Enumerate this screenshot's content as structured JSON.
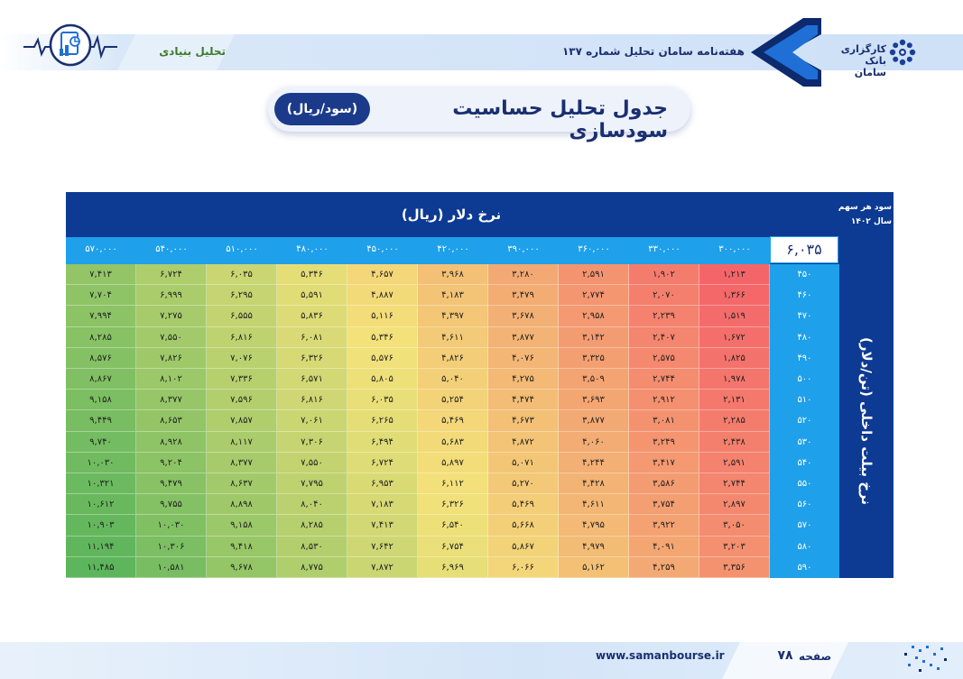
{
  "header": {
    "brand_name": "کارگزاری بانک سامان",
    "issue_title": "هفته‌نامه سامان تحلیل شماره ۱۳۷",
    "section_tag": "تحلیل بنیادی"
  },
  "title": {
    "main": "جدول تحلیل حساسیت سودسازی",
    "unit": "(سود/ریال)"
  },
  "table": {
    "corner_label": [
      "سود هر سهم",
      "سال ۱۴۰۲"
    ],
    "base_eps": "۶,۰۳۵",
    "column_axis_label": "نرخ دلار (ریال)",
    "row_axis_label": "نرخ بیلت داخلی (تن/دلار)",
    "column_headers": [
      "۳۰۰,۰۰۰",
      "۳۳۰,۰۰۰",
      "۳۶۰,۰۰۰",
      "۳۹۰,۰۰۰",
      "۴۲۰,۰۰۰",
      "۴۵۰,۰۰۰",
      "۴۸۰,۰۰۰",
      "۵۱۰,۰۰۰",
      "۵۴۰,۰۰۰",
      "۵۷۰,۰۰۰"
    ],
    "row_headers": [
      "۴۵۰",
      "۴۶۰",
      "۴۷۰",
      "۴۸۰",
      "۴۹۰",
      "۵۰۰",
      "۵۱۰",
      "۵۲۰",
      "۵۳۰",
      "۵۴۰",
      "۵۵۰",
      "۵۶۰",
      "۵۷۰",
      "۵۸۰",
      "۵۹۰"
    ],
    "rows": [
      [
        "۱,۲۱۳",
        "۱,۹۰۲",
        "۲,۵۹۱",
        "۳,۲۸۰",
        "۳,۹۶۸",
        "۴,۶۵۷",
        "۵,۳۴۶",
        "۶,۰۳۵",
        "۶,۷۲۴",
        "۷,۴۱۳"
      ],
      [
        "۱,۳۶۶",
        "۲,۰۷۰",
        "۲,۷۷۴",
        "۳,۴۷۹",
        "۴,۱۸۳",
        "۴,۸۸۷",
        "۵,۵۹۱",
        "۶,۲۹۵",
        "۶,۹۹۹",
        "۷,۷۰۴"
      ],
      [
        "۱,۵۱۹",
        "۲,۲۳۹",
        "۲,۹۵۸",
        "۳,۶۷۸",
        "۴,۳۹۷",
        "۵,۱۱۶",
        "۵,۸۳۶",
        "۶,۵۵۵",
        "۷,۲۷۵",
        "۷,۹۹۴"
      ],
      [
        "۱,۶۷۲",
        "۲,۴۰۷",
        "۳,۱۴۲",
        "۳,۸۷۷",
        "۴,۶۱۱",
        "۵,۳۴۶",
        "۶,۰۸۱",
        "۶,۸۱۶",
        "۷,۵۵۰",
        "۸,۲۸۵"
      ],
      [
        "۱,۸۲۵",
        "۲,۵۷۵",
        "۳,۳۲۵",
        "۴,۰۷۶",
        "۴,۸۲۶",
        "۵,۵۷۶",
        "۶,۳۲۶",
        "۷,۰۷۶",
        "۷,۸۲۶",
        "۸,۵۷۶"
      ],
      [
        "۱,۹۷۸",
        "۲,۷۴۴",
        "۳,۵۰۹",
        "۴,۲۷۵",
        "۵,۰۴۰",
        "۵,۸۰۵",
        "۶,۵۷۱",
        "۷,۳۳۶",
        "۸,۱۰۲",
        "۸,۸۶۷"
      ],
      [
        "۲,۱۳۱",
        "۲,۹۱۲",
        "۳,۶۹۳",
        "۴,۴۷۴",
        "۵,۲۵۴",
        "۶,۰۳۵",
        "۶,۸۱۶",
        "۷,۵۹۶",
        "۸,۳۷۷",
        "۹,۱۵۸"
      ],
      [
        "۲,۲۸۵",
        "۳,۰۸۱",
        "۳,۸۷۷",
        "۴,۶۷۳",
        "۵,۴۶۹",
        "۶,۲۶۵",
        "۷,۰۶۱",
        "۷,۸۵۷",
        "۸,۶۵۳",
        "۹,۴۴۹"
      ],
      [
        "۲,۴۳۸",
        "۳,۲۴۹",
        "۴,۰۶۰",
        "۴,۸۷۲",
        "۵,۶۸۳",
        "۶,۴۹۴",
        "۷,۳۰۶",
        "۸,۱۱۷",
        "۸,۹۲۸",
        "۹,۷۴۰"
      ],
      [
        "۲,۵۹۱",
        "۳,۴۱۷",
        "۴,۲۴۴",
        "۵,۰۷۱",
        "۵,۸۹۷",
        "۶,۷۲۴",
        "۷,۵۵۰",
        "۸,۳۷۷",
        "۹,۲۰۴",
        "۱۰,۰۳۰"
      ],
      [
        "۲,۷۴۴",
        "۳,۵۸۶",
        "۴,۴۲۸",
        "۵,۲۷۰",
        "۶,۱۱۲",
        "۶,۹۵۳",
        "۷,۷۹۵",
        "۸,۶۳۷",
        "۹,۴۷۹",
        "۱۰,۳۲۱"
      ],
      [
        "۲,۸۹۷",
        "۳,۷۵۴",
        "۴,۶۱۱",
        "۵,۴۶۹",
        "۶,۳۲۶",
        "۷,۱۸۳",
        "۸,۰۴۰",
        "۸,۸۹۸",
        "۹,۷۵۵",
        "۱۰,۶۱۲"
      ],
      [
        "۳,۰۵۰",
        "۳,۹۲۲",
        "۴,۷۹۵",
        "۵,۶۶۸",
        "۶,۵۴۰",
        "۷,۴۱۳",
        "۸,۲۸۵",
        "۹,۱۵۸",
        "۱۰,۰۳۰",
        "۱۰,۹۰۳"
      ],
      [
        "۳,۲۰۳",
        "۴,۰۹۱",
        "۴,۹۷۹",
        "۵,۸۶۷",
        "۶,۷۵۴",
        "۷,۶۴۲",
        "۸,۵۳۰",
        "۹,۴۱۸",
        "۱۰,۳۰۶",
        "۱۱,۱۹۴"
      ],
      [
        "۳,۳۵۶",
        "۴,۲۵۹",
        "۵,۱۶۲",
        "۶,۰۶۶",
        "۶,۹۶۹",
        "۷,۸۷۲",
        "۸,۷۷۵",
        "۹,۶۷۸",
        "۱۰,۵۸۱",
        "۱۱,۴۸۵"
      ]
    ],
    "colors": {
      "low": "#f4656a",
      "mid": "#f3e27a",
      "high": "#5db55c"
    }
  },
  "footer": {
    "site_url": "www.samanbourse.ir",
    "page_label": "صفحه",
    "page_number": "۷۸"
  },
  "icons": [
    "saman-logo-icon",
    "chevron-emblem-icon",
    "chart-report-icon",
    "dot-pattern-icon"
  ]
}
